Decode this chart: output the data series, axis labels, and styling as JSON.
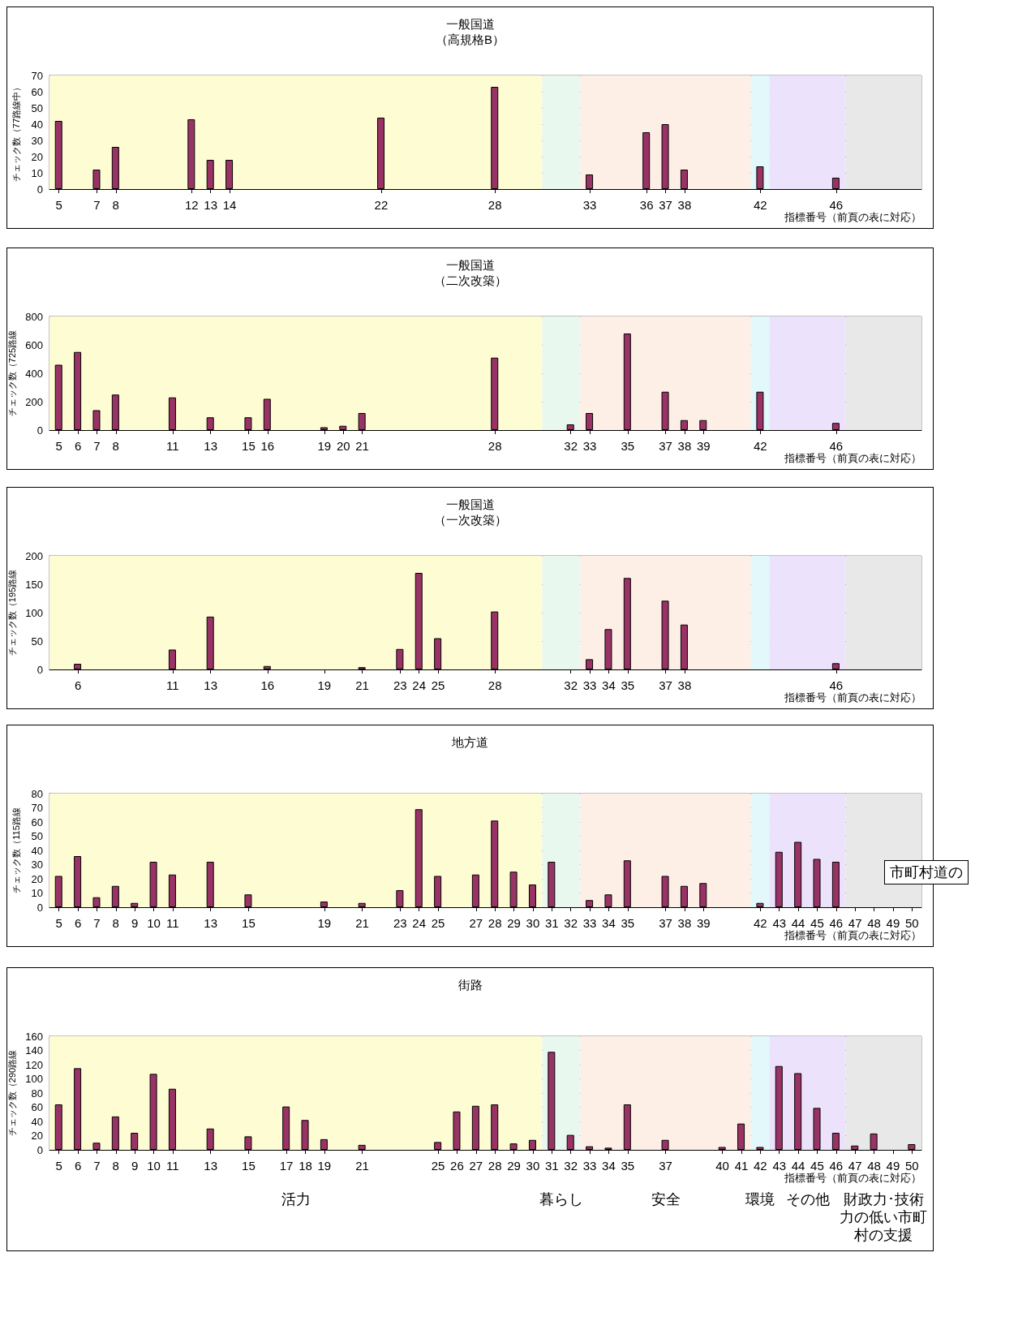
{
  "chart_data": [
    {
      "type": "bar",
      "title": "一般国道",
      "subtitle": "（高規格B）",
      "xlabel": "指標番号（前頁の表に対応）",
      "ylabel": "チェック数（77路線中）",
      "x": [
        5,
        7,
        8,
        12,
        13,
        14,
        22,
        28,
        33,
        36,
        37,
        38,
        42,
        46
      ],
      "series": [
        {
          "color": "#993366",
          "values": [
            42,
            12,
            26,
            43,
            18,
            18,
            44,
            63,
            9,
            35,
            40,
            12,
            14,
            7
          ]
        }
      ],
      "xlim": [
        4.5,
        50.5
      ],
      "xticks": [
        5,
        7,
        8,
        12,
        13,
        14,
        22,
        28,
        33,
        36,
        37,
        38,
        42,
        46
      ],
      "ylim": [
        0,
        70
      ],
      "yticks": [
        0,
        10,
        20,
        30,
        40,
        50,
        60,
        70
      ],
      "grid": "y",
      "bands": [
        {
          "axis": "x",
          "from": 4.5,
          "to": 30.5,
          "color": "#fdfcd2"
        },
        {
          "axis": "x",
          "from": 30.5,
          "to": 32.5,
          "color": "#e8f8ee"
        },
        {
          "axis": "x",
          "from": 32.5,
          "to": 41.5,
          "color": "#fdefe6"
        },
        {
          "axis": "x",
          "from": 41.5,
          "to": 42.5,
          "color": "#e2f8fb"
        },
        {
          "axis": "x",
          "from": 42.5,
          "to": 46.5,
          "color": "#ece2fb"
        },
        {
          "axis": "x",
          "from": 46.5,
          "to": 50.5,
          "color": "#e8e8e8"
        }
      ]
    },
    {
      "type": "bar",
      "title": "一般国道",
      "subtitle": "（二次改築）",
      "xlabel": "指標番号（前頁の表に対応）",
      "ylabel": "チェック数（725路線",
      "x": [
        5,
        6,
        7,
        8,
        11,
        13,
        15,
        16,
        19,
        20,
        21,
        28,
        32,
        33,
        35,
        37,
        38,
        39,
        42,
        46
      ],
      "series": [
        {
          "color": "#993366",
          "values": [
            460,
            550,
            140,
            250,
            230,
            90,
            90,
            220,
            20,
            30,
            120,
            510,
            40,
            120,
            680,
            270,
            70,
            70,
            270,
            50
          ]
        }
      ],
      "xlim": [
        4.5,
        50.5
      ],
      "xticks": [
        5,
        6,
        7,
        8,
        11,
        13,
        15,
        16,
        19,
        20,
        21,
        28,
        32,
        33,
        35,
        37,
        38,
        39,
        42,
        46
      ],
      "ylim": [
        0,
        800
      ],
      "yticks": [
        0,
        200,
        400,
        600,
        800
      ],
      "grid": "y",
      "bands": [
        {
          "axis": "x",
          "from": 4.5,
          "to": 30.5,
          "color": "#fdfcd2"
        },
        {
          "axis": "x",
          "from": 30.5,
          "to": 32.5,
          "color": "#e8f8ee"
        },
        {
          "axis": "x",
          "from": 32.5,
          "to": 41.5,
          "color": "#fdefe6"
        },
        {
          "axis": "x",
          "from": 41.5,
          "to": 42.5,
          "color": "#e2f8fb"
        },
        {
          "axis": "x",
          "from": 42.5,
          "to": 46.5,
          "color": "#ece2fb"
        },
        {
          "axis": "x",
          "from": 46.5,
          "to": 50.5,
          "color": "#e8e8e8"
        }
      ]
    },
    {
      "type": "bar",
      "title": "一般国道",
      "subtitle": "（一次改築）",
      "xlabel": "指標番号（前頁の表に対応）",
      "ylabel": "チェック数（195路線",
      "x": [
        6,
        11,
        13,
        16,
        21,
        23,
        24,
        25,
        28,
        33,
        34,
        35,
        37,
        38,
        46
      ],
      "series": [
        {
          "color": "#993366",
          "values": [
            10,
            35,
            93,
            6,
            4,
            36,
            170,
            55,
            102,
            18,
            71,
            161,
            121,
            79,
            11
          ]
        }
      ],
      "xlim": [
        4.5,
        50.5
      ],
      "xticks": [
        6,
        11,
        13,
        16,
        19,
        21,
        23,
        24,
        25,
        28,
        32,
        33,
        34,
        35,
        37,
        38,
        46
      ],
      "ylim": [
        0,
        200
      ],
      "yticks": [
        0,
        50,
        100,
        150,
        200
      ],
      "grid": "y",
      "bands": [
        {
          "axis": "x",
          "from": 4.5,
          "to": 30.5,
          "color": "#fdfcd2"
        },
        {
          "axis": "x",
          "from": 30.5,
          "to": 32.5,
          "color": "#e8f8ee"
        },
        {
          "axis": "x",
          "from": 32.5,
          "to": 41.5,
          "color": "#fdefe6"
        },
        {
          "axis": "x",
          "from": 41.5,
          "to": 42.5,
          "color": "#e2f8fb"
        },
        {
          "axis": "x",
          "from": 42.5,
          "to": 46.5,
          "color": "#ece2fb"
        },
        {
          "axis": "x",
          "from": 46.5,
          "to": 50.5,
          "color": "#e8e8e8"
        }
      ]
    },
    {
      "type": "bar",
      "title": "地方道",
      "xlabel": "指標番号（前頁の表に対応）",
      "ylabel": "チェック数（115路線",
      "x": [
        5,
        6,
        7,
        8,
        9,
        10,
        11,
        13,
        15,
        19,
        21,
        23,
        24,
        25,
        27,
        28,
        29,
        30,
        31,
        33,
        34,
        35,
        37,
        38,
        39,
        42,
        43,
        44,
        45,
        46
      ],
      "series": [
        {
          "color": "#993366",
          "values": [
            22,
            36,
            7,
            15,
            3,
            32,
            23,
            32,
            9,
            4,
            3,
            12,
            69,
            22,
            23,
            61,
            25,
            16,
            32,
            5,
            9,
            33,
            22,
            15,
            17,
            3,
            39,
            46,
            34,
            32
          ]
        }
      ],
      "xlim": [
        4.5,
        50.5
      ],
      "xticks": [
        5,
        6,
        7,
        8,
        9,
        10,
        11,
        13,
        15,
        19,
        21,
        23,
        24,
        25,
        27,
        28,
        29,
        30,
        31,
        32,
        33,
        34,
        35,
        37,
        38,
        39,
        42,
        43,
        44,
        45,
        46,
        47,
        48,
        49,
        50
      ],
      "ylim": [
        0,
        80
      ],
      "yticks": [
        0,
        10,
        20,
        30,
        40,
        50,
        60,
        70,
        80
      ],
      "grid": "y",
      "annotations": [
        "市町村道の"
      ],
      "bands": [
        {
          "axis": "x",
          "from": 4.5,
          "to": 30.5,
          "color": "#fdfcd2"
        },
        {
          "axis": "x",
          "from": 30.5,
          "to": 32.5,
          "color": "#e8f8ee"
        },
        {
          "axis": "x",
          "from": 32.5,
          "to": 41.5,
          "color": "#fdefe6"
        },
        {
          "axis": "x",
          "from": 41.5,
          "to": 42.5,
          "color": "#e2f8fb"
        },
        {
          "axis": "x",
          "from": 42.5,
          "to": 46.5,
          "color": "#ece2fb"
        },
        {
          "axis": "x",
          "from": 46.5,
          "to": 50.5,
          "color": "#e8e8e8"
        }
      ]
    },
    {
      "type": "bar",
      "title": "街路",
      "xlabel": "指標番号（前頁の表に対応）",
      "ylabel": "チェック数（290路線",
      "x": [
        5,
        6,
        7,
        8,
        9,
        10,
        11,
        13,
        15,
        17,
        18,
        19,
        21,
        25,
        26,
        27,
        28,
        29,
        30,
        31,
        32,
        33,
        34,
        35,
        37,
        40,
        41,
        42,
        43,
        44,
        45,
        46,
        47,
        48,
        50
      ],
      "series": [
        {
          "color": "#993366",
          "values": [
            64,
            115,
            10,
            47,
            24,
            107,
            86,
            30,
            19,
            61,
            42,
            15,
            7,
            11,
            54,
            62,
            64,
            9,
            14,
            138,
            21,
            5,
            3,
            64,
            14,
            4,
            37,
            4,
            118,
            108,
            59,
            24,
            6,
            23,
            8
          ]
        }
      ],
      "xlim": [
        4.5,
        50.5
      ],
      "xticks": [
        5,
        6,
        7,
        8,
        9,
        10,
        11,
        13,
        15,
        17,
        18,
        19,
        21,
        25,
        26,
        27,
        28,
        29,
        30,
        31,
        32,
        33,
        34,
        35,
        37,
        40,
        41,
        42,
        43,
        44,
        45,
        46,
        47,
        48,
        49,
        50
      ],
      "ylim": [
        0,
        160
      ],
      "yticks": [
        0,
        20,
        40,
        60,
        80,
        100,
        120,
        140,
        160
      ],
      "grid": "y",
      "bands": [
        {
          "axis": "x",
          "from": 4.5,
          "to": 30.5,
          "color": "#fdfcd2",
          "label": "活力"
        },
        {
          "axis": "x",
          "from": 30.5,
          "to": 32.5,
          "color": "#e8f8ee",
          "label": "暮らし"
        },
        {
          "axis": "x",
          "from": 32.5,
          "to": 41.5,
          "color": "#fdefe6",
          "label": "安全"
        },
        {
          "axis": "x",
          "from": 41.5,
          "to": 42.5,
          "color": "#e2f8fb",
          "label": "環境"
        },
        {
          "axis": "x",
          "from": 42.5,
          "to": 46.5,
          "color": "#ece2fb",
          "label": "その他"
        },
        {
          "axis": "x",
          "from": 46.5,
          "to": 50.5,
          "color": "#e8e8e8",
          "label": "財政力･技術力の低い市町村の支援"
        }
      ]
    }
  ]
}
